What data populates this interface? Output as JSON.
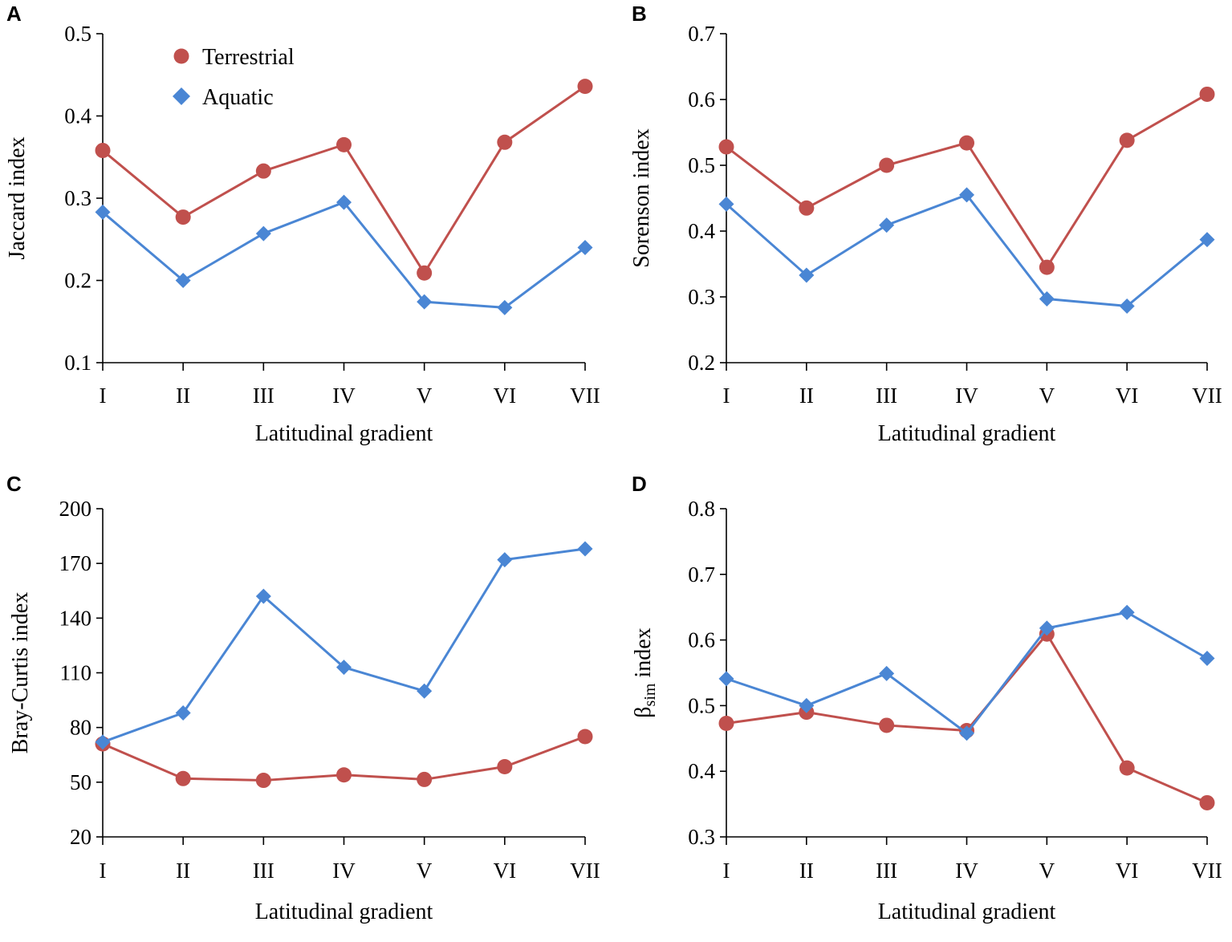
{
  "colors": {
    "terrestrial": "#c0504d",
    "aquatic": "#4a86d4",
    "axis": "#000000"
  },
  "legend": {
    "terrestrial": "Terrestrial",
    "aquatic": "Aquatic"
  },
  "chart_data": [
    {
      "panel": "A",
      "type": "line",
      "categories": [
        "I",
        "II",
        "III",
        "IV",
        "V",
        "VI",
        "VII"
      ],
      "xlabel": "Latitudinal gradient",
      "ylabel": "Jaccard index",
      "ylim": [
        0.1,
        0.5
      ],
      "yticks": [
        "0.1",
        "0.2",
        "0.3",
        "0.4",
        "0.5"
      ],
      "series": [
        {
          "name": "Terrestrial",
          "marker": "circle",
          "values": [
            0.358,
            0.277,
            0.333,
            0.365,
            0.209,
            0.368,
            0.436
          ]
        },
        {
          "name": "Aquatic",
          "marker": "diamond",
          "values": [
            0.283,
            0.2,
            0.257,
            0.295,
            0.174,
            0.167,
            0.24
          ]
        }
      ]
    },
    {
      "panel": "B",
      "type": "line",
      "categories": [
        "I",
        "II",
        "III",
        "IV",
        "V",
        "VI",
        "VII"
      ],
      "xlabel": "Latitudinal gradient",
      "ylabel": "Sorenson index",
      "ylim": [
        0.2,
        0.7
      ],
      "yticks": [
        "0.2",
        "0.3",
        "0.4",
        "0.5",
        "0.6",
        "0.7"
      ],
      "series": [
        {
          "name": "Terrestrial",
          "marker": "circle",
          "values": [
            0.528,
            0.435,
            0.5,
            0.534,
            0.345,
            0.538,
            0.608
          ]
        },
        {
          "name": "Aquatic",
          "marker": "diamond",
          "values": [
            0.441,
            0.333,
            0.409,
            0.455,
            0.297,
            0.286,
            0.387
          ]
        }
      ]
    },
    {
      "panel": "C",
      "type": "line",
      "categories": [
        "I",
        "II",
        "III",
        "IV",
        "V",
        "VI",
        "VII"
      ],
      "xlabel": "Latitudinal gradient",
      "ylabel": "Bray-Curtis index",
      "ylim": [
        20,
        200
      ],
      "yticks": [
        "20",
        "50",
        "80",
        "110",
        "140",
        "170",
        "200"
      ],
      "series": [
        {
          "name": "Terrestrial",
          "marker": "circle",
          "values": [
            71,
            52,
            51,
            54,
            51.5,
            58.5,
            75
          ]
        },
        {
          "name": "Aquatic",
          "marker": "diamond",
          "values": [
            72,
            88,
            152,
            113,
            100,
            172,
            178
          ]
        }
      ]
    },
    {
      "panel": "D",
      "type": "line",
      "categories": [
        "I",
        "II",
        "III",
        "IV",
        "V",
        "VI",
        "VII"
      ],
      "xlabel": "Latitudinal gradient",
      "ylabel": "βsim index",
      "ylabel_main": "β",
      "ylabel_sub": "sim",
      "ylabel_tail": " index",
      "ylim": [
        0.3,
        0.8
      ],
      "yticks": [
        "0.3",
        "0.4",
        "0.5",
        "0.6",
        "0.7",
        "0.8"
      ],
      "series": [
        {
          "name": "Terrestrial",
          "marker": "circle",
          "values": [
            0.473,
            0.49,
            0.47,
            0.462,
            0.609,
            0.405,
            0.352
          ]
        },
        {
          "name": "Aquatic",
          "marker": "diamond",
          "values": [
            0.541,
            0.5,
            0.549,
            0.458,
            0.618,
            0.642,
            0.572
          ]
        }
      ]
    }
  ]
}
